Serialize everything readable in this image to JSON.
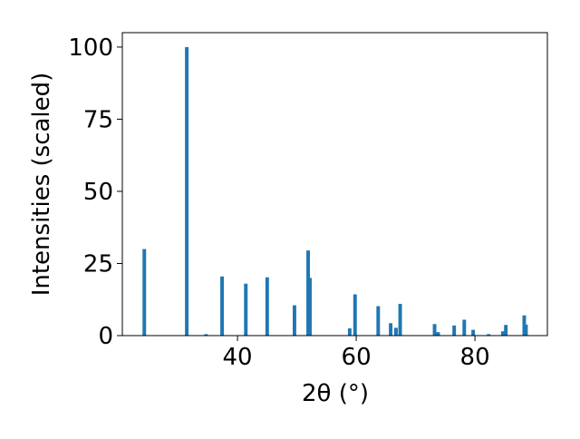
{
  "chart_data": {
    "type": "bar",
    "x_label": "2θ (°)",
    "y_label": "Intensities (scaled)",
    "x": [
      24.3,
      31.45,
      34.7,
      37.4,
      41.4,
      45.0,
      49.6,
      51.9,
      52.2,
      58.9,
      59.8,
      63.7,
      65.8,
      66.7,
      67.4,
      73.2,
      73.8,
      76.5,
      78.2,
      79.7,
      82.3,
      84.7,
      85.2,
      88.3,
      88.6
    ],
    "values": [
      30,
      100,
      0.5,
      20.5,
      18,
      20.2,
      10.5,
      29.5,
      20,
      2.5,
      14.3,
      10.2,
      4.3,
      2.7,
      11,
      4,
      1.2,
      3.5,
      5.5,
      2,
      0.5,
      1.5,
      3.7,
      7,
      3.8
    ],
    "color": "#1f77b4",
    "xlim": [
      20.6,
      92.2
    ],
    "ylim": [
      0,
      105
    ],
    "xticks": [
      40,
      60,
      80
    ],
    "yticks": [
      0,
      25,
      50,
      75,
      100
    ]
  }
}
